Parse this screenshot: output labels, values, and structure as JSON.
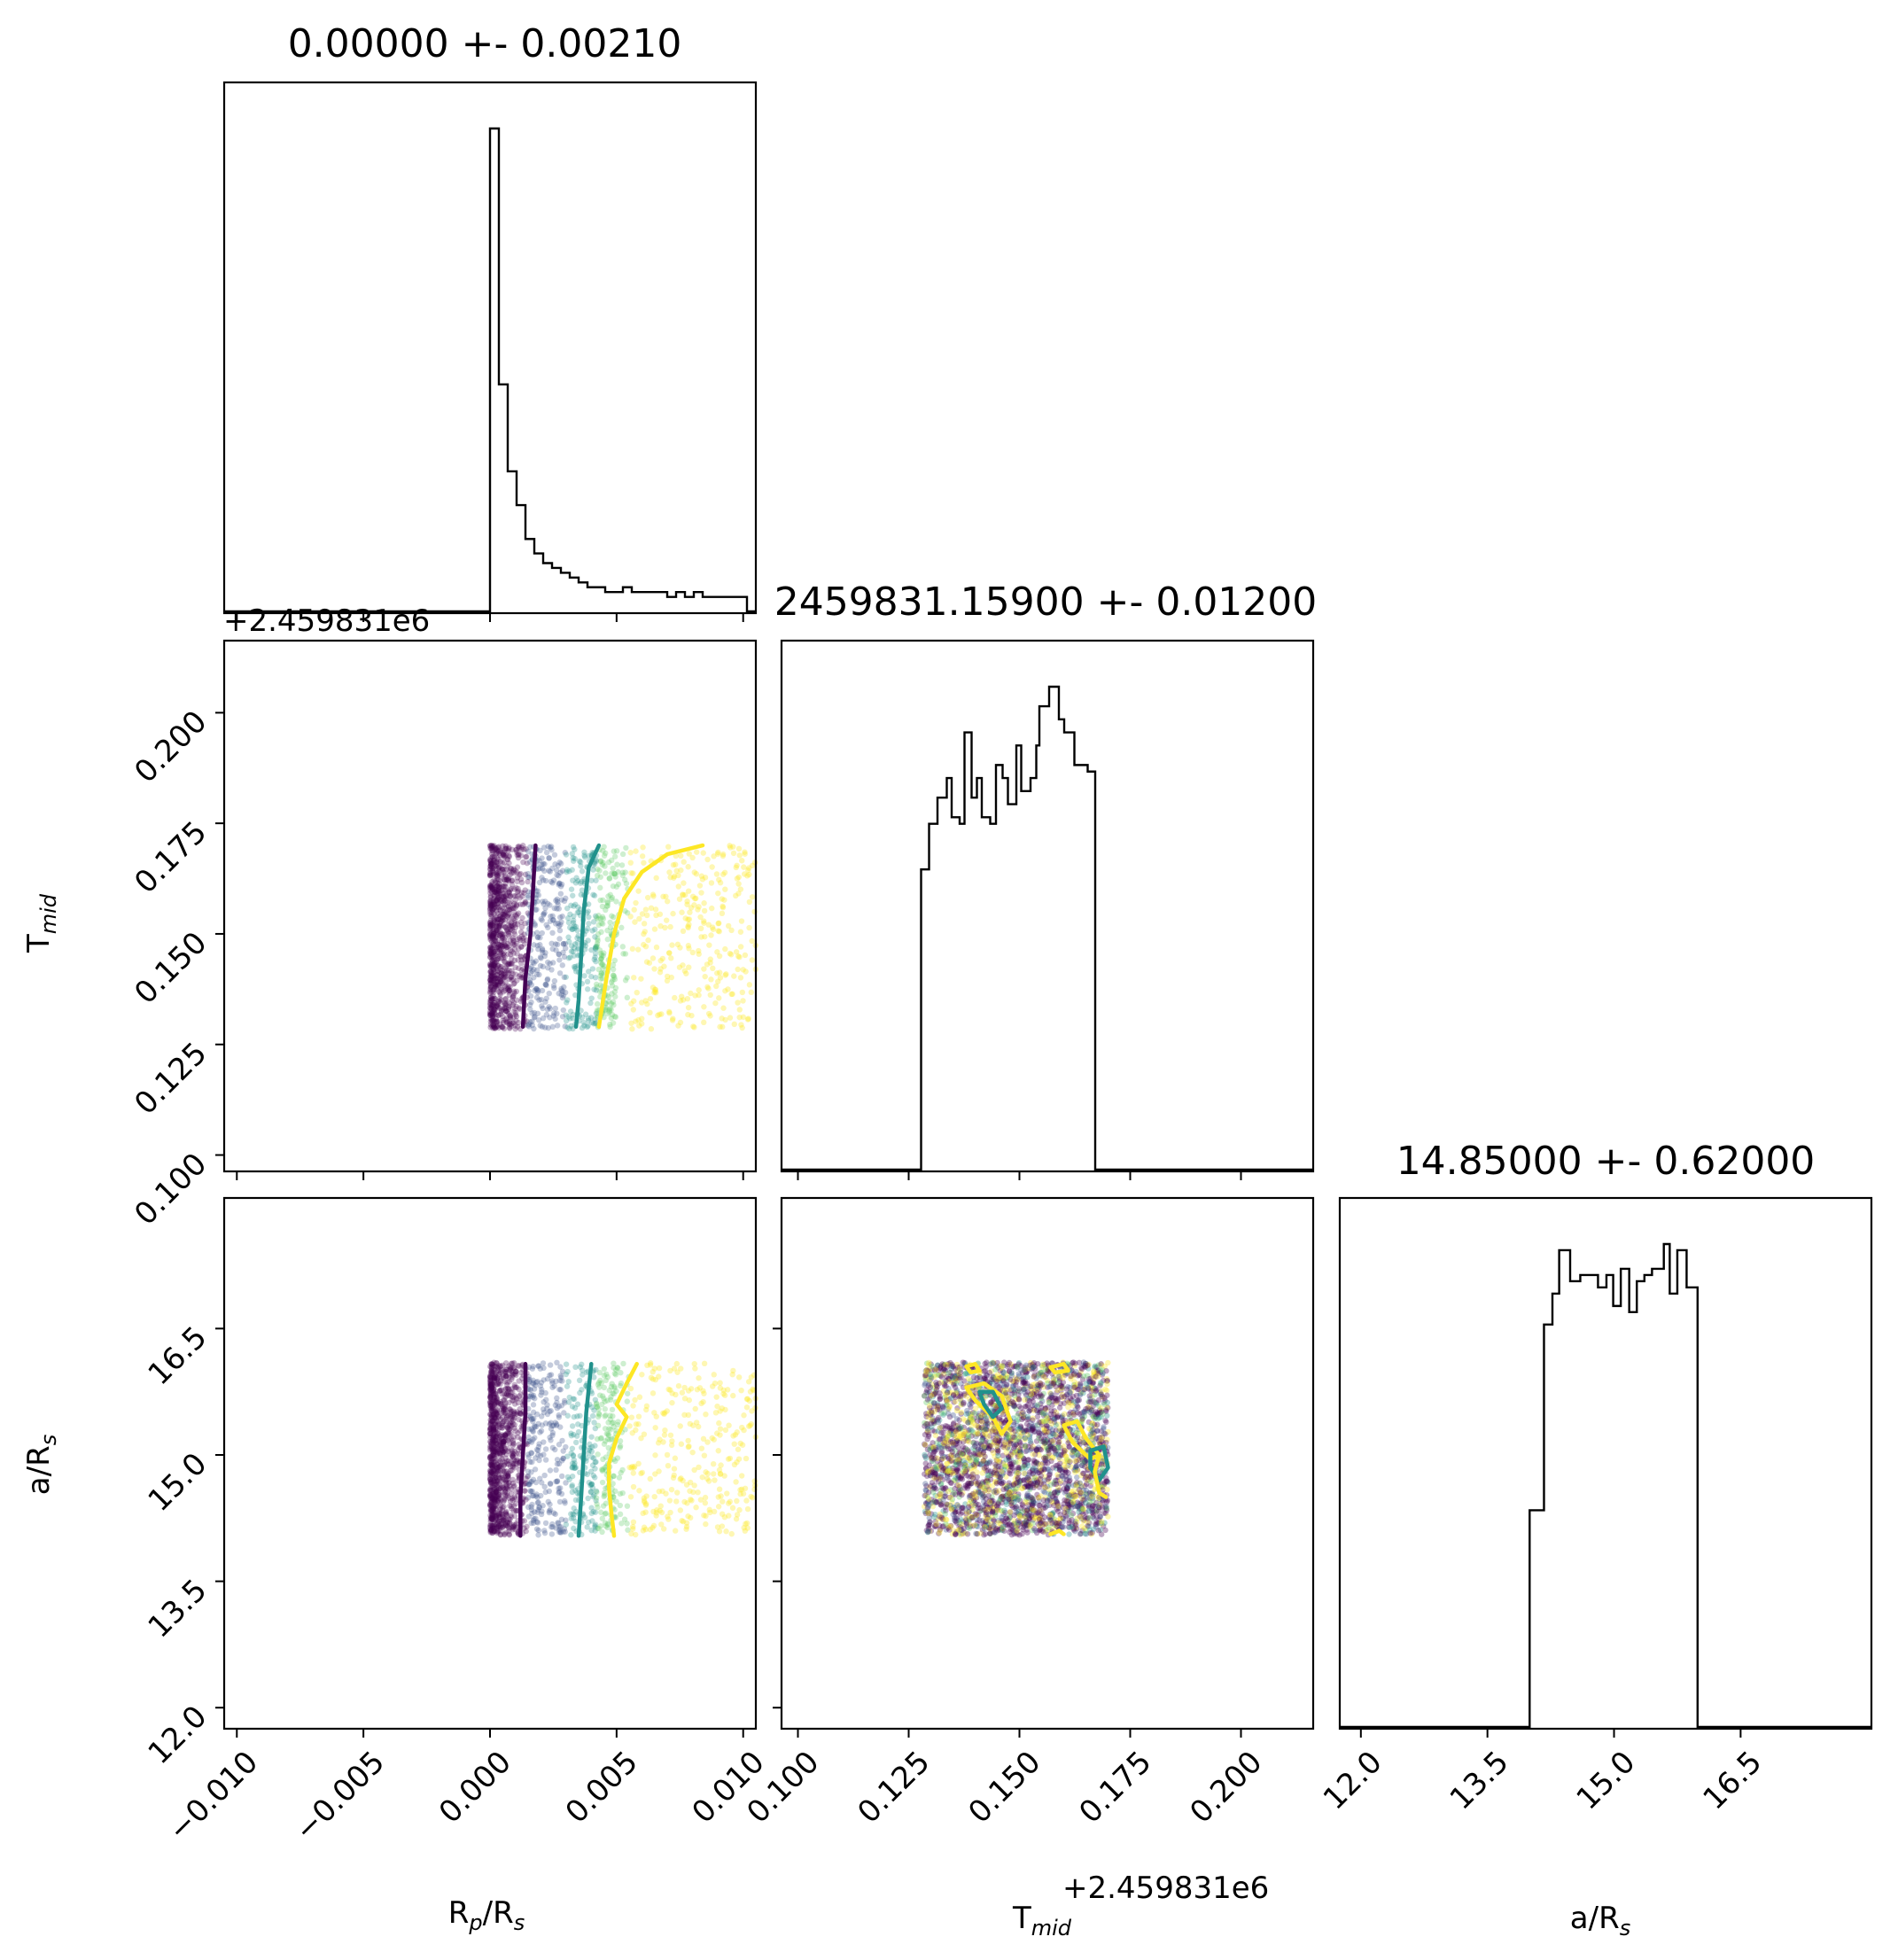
{
  "chart_data": {
    "type": "corner",
    "parameters": [
      {
        "key": "rp",
        "label_main": "R",
        "label_sub": "p",
        "label_rest": "/R",
        "label_sub2": "s"
      },
      {
        "key": "tmid",
        "label_main": "T",
        "label_sub": "mid",
        "label_rest": "",
        "label_sub2": ""
      },
      {
        "key": "ars",
        "label_main": "a/R",
        "label_sub": "s",
        "label_rest": "",
        "label_sub2": ""
      }
    ],
    "titles": [
      "0.00000 +- 0.00210",
      "2459831.15900 +- 0.01200",
      "14.85000 +- 0.62000"
    ],
    "tmid_offset_label": "+2.459831e6",
    "axes": {
      "rp": {
        "lim": [
          -0.0105,
          0.0105
        ],
        "ticks": [
          -0.01,
          -0.005,
          0.0,
          0.005,
          0.01
        ],
        "tick_labels": [
          "−0.010",
          "−0.005",
          "0.000",
          "0.005",
          "0.010"
        ]
      },
      "tmid": {
        "lim": [
          0.0963,
          0.2163
        ],
        "ticks": [
          0.1,
          0.125,
          0.15,
          0.175,
          0.2
        ],
        "tick_labels": [
          "0.100",
          "0.125",
          "0.150",
          "0.175",
          "0.200"
        ]
      },
      "ars": {
        "lim": [
          11.75,
          18.05
        ],
        "ticks": [
          12.0,
          13.5,
          15.0,
          16.5
        ],
        "tick_labels": [
          "12.0",
          "13.5",
          "15.0",
          "16.5"
        ]
      }
    },
    "hist_rp": {
      "edges_start": 0.0,
      "bin_width": 0.00035,
      "counts": [
        100,
        47,
        29,
        22,
        15,
        12,
        10,
        9,
        8,
        7,
        6,
        5,
        5,
        4,
        4,
        5,
        4,
        4,
        4,
        4,
        3,
        4,
        3,
        4,
        3,
        3,
        3,
        3,
        3
      ]
    },
    "hist_tmid": {
      "edges": [
        0.1278,
        0.1296,
        0.1315,
        0.1336,
        0.1347,
        0.1365,
        0.1376,
        0.1392,
        0.1404,
        0.1415,
        0.1434,
        0.1447,
        0.1462,
        0.1474,
        0.1493,
        0.1504,
        0.1525,
        0.1538,
        0.1545,
        0.1567,
        0.1589,
        0.1601,
        0.1624,
        0.1638,
        0.1654,
        0.1671,
        0.1701
      ],
      "counts": [
        46,
        53,
        57,
        60,
        54,
        53,
        67,
        57,
        60,
        54,
        53,
        62,
        60,
        56,
        65,
        58,
        60,
        65,
        71,
        74,
        69,
        67,
        62,
        62,
        61,
        0
      ]
    },
    "hist_ars": {
      "edges": [
        14.0,
        14.17,
        14.27,
        14.35,
        14.48,
        14.6,
        14.72,
        14.81,
        14.91,
        14.99,
        15.08,
        15.18,
        15.27,
        15.36,
        15.45,
        15.59,
        15.66,
        15.75,
        15.86,
        15.99,
        16.08
      ],
      "counts": [
        35,
        65,
        70,
        77,
        72,
        73,
        73,
        71,
        73,
        68,
        74,
        67,
        72,
        73,
        74,
        78,
        70,
        77,
        71,
        0
      ]
    },
    "contours_rp_tmid": {
      "levels": [
        {
          "name": "dark",
          "color": "#440154",
          "points": [
            [
              0.0018,
              0.17
            ],
            [
              0.0017,
              0.16
            ],
            [
              0.0016,
              0.15
            ],
            [
              0.0014,
              0.14
            ],
            [
              0.0013,
              0.129
            ]
          ]
        },
        {
          "name": "teal",
          "color": "#21918c",
          "points": [
            [
              0.0043,
              0.17
            ],
            [
              0.0039,
              0.165
            ],
            [
              0.0037,
              0.155
            ],
            [
              0.0036,
              0.145
            ],
            [
              0.0035,
              0.135
            ],
            [
              0.0034,
              0.129
            ]
          ]
        },
        {
          "name": "yellow",
          "color": "#fde725",
          "points": [
            [
              0.0084,
              0.17
            ],
            [
              0.007,
              0.168
            ],
            [
              0.006,
              0.164
            ],
            [
              0.0053,
              0.158
            ],
            [
              0.0049,
              0.15
            ],
            [
              0.0046,
              0.14
            ],
            [
              0.0043,
              0.129
            ]
          ]
        }
      ]
    },
    "contours_rp_ars": {
      "levels": [
        {
          "name": "dark",
          "color": "#440154",
          "points": [
            [
              0.0014,
              16.08
            ],
            [
              0.0014,
              15.5
            ],
            [
              0.0013,
              15.0
            ],
            [
              0.0012,
              14.5
            ],
            [
              0.0012,
              14.04
            ]
          ]
        },
        {
          "name": "teal",
          "color": "#21918c",
          "points": [
            [
              0.004,
              16.08
            ],
            [
              0.0038,
              15.5
            ],
            [
              0.0037,
              15.0
            ],
            [
              0.0036,
              14.5
            ],
            [
              0.0035,
              14.04
            ]
          ]
        },
        {
          "name": "yellow",
          "color": "#fde725",
          "points": [
            [
              0.0058,
              16.08
            ],
            [
              0.0054,
              15.85
            ],
            [
              0.005,
              15.6
            ],
            [
              0.0054,
              15.45
            ],
            [
              0.005,
              15.2
            ],
            [
              0.0047,
              14.9
            ],
            [
              0.0047,
              14.6
            ],
            [
              0.0048,
              14.3
            ],
            [
              0.0049,
              14.04
            ]
          ]
        }
      ]
    },
    "contours_tmid_ars": {
      "levels": [
        {
          "name": "yellow-1",
          "color": "#fde725",
          "closed": true,
          "points": [
            [
              0.138,
              15.8
            ],
            [
              0.142,
              15.85
            ],
            [
              0.146,
              15.7
            ],
            [
              0.148,
              15.4
            ],
            [
              0.146,
              15.25
            ],
            [
              0.144,
              15.45
            ],
            [
              0.14,
              15.65
            ]
          ]
        },
        {
          "name": "teal-1",
          "color": "#21918c",
          "closed": true,
          "points": [
            [
              0.141,
              15.75
            ],
            [
              0.144,
              15.75
            ],
            [
              0.146,
              15.55
            ],
            [
              0.144,
              15.45
            ],
            [
              0.142,
              15.6
            ]
          ]
        },
        {
          "name": "yellow-2",
          "color": "#fde725",
          "closed": true,
          "points": [
            [
              0.16,
              15.35
            ],
            [
              0.163,
              15.4
            ],
            [
              0.165,
              15.2
            ],
            [
              0.168,
              15.0
            ],
            [
              0.166,
              14.95
            ],
            [
              0.162,
              15.15
            ]
          ]
        },
        {
          "name": "teal-2",
          "color": "#21918c",
          "closed": true,
          "points": [
            [
              0.166,
              15.05
            ],
            [
              0.169,
              15.1
            ],
            [
              0.17,
              14.85
            ],
            [
              0.168,
              14.7
            ],
            [
              0.166,
              14.85
            ]
          ]
        },
        {
          "name": "yellow-3",
          "color": "#fde725",
          "closed": false,
          "points": [
            [
              0.168,
              15.0
            ],
            [
              0.167,
              14.8
            ],
            [
              0.168,
              14.55
            ],
            [
              0.1695,
              14.5
            ]
          ]
        },
        {
          "name": "yellow-4",
          "color": "#fde725",
          "closed": true,
          "points": [
            [
              0.138,
              16.05
            ],
            [
              0.14,
              16.08
            ],
            [
              0.141,
              16.0
            ],
            [
              0.139,
              15.98
            ]
          ]
        },
        {
          "name": "yellow-5",
          "color": "#fde725",
          "closed": true,
          "points": [
            [
              0.157,
              16.04
            ],
            [
              0.16,
              16.08
            ],
            [
              0.161,
              16.0
            ],
            [
              0.158,
              15.98
            ]
          ]
        },
        {
          "name": "yellow-6",
          "color": "#fde725",
          "closed": false,
          "points": [
            [
              0.157,
              14.06
            ],
            [
              0.159,
              14.1
            ],
            [
              0.16,
              14.06
            ]
          ]
        }
      ]
    },
    "scatter_ranges": {
      "rp": [
        0.0,
        0.0105
      ],
      "tmid": [
        0.1285,
        0.17
      ],
      "ars": [
        14.05,
        16.1
      ]
    },
    "colors": {
      "viridis": [
        "#440154",
        "#3b528b",
        "#21918c",
        "#5ec962",
        "#fde725"
      ],
      "hist_line": "#000000"
    }
  }
}
